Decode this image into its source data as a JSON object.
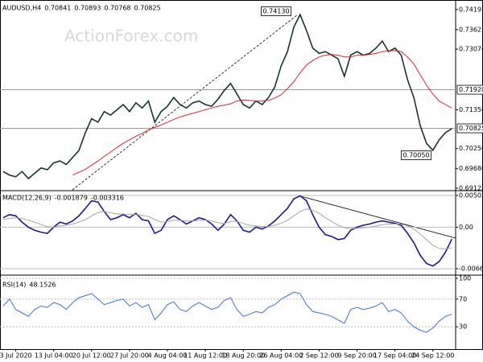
{
  "watermark": "ActionForex.com",
  "chart_data": [
    {
      "type": "line",
      "title": "AUDUSD,H4",
      "ohlc": [
        0.70841,
        0.70893,
        0.70768,
        0.70825
      ],
      "ylim": [
        0.6908,
        0.7442
      ],
      "yticks": [
        0.74195,
        0.73625,
        {
          "value": 0.7307,
          "label": "0.73070"
        },
        {
          "value": 0.7135,
          "label": "0.71350"
        },
        {
          "value": 0.7025,
          "label": "0.70250"
        },
        {
          "value": 0.6968,
          "label": "0.69680"
        },
        0.69125
      ],
      "levels": [
        {
          "value": 0.7192,
          "label": "0.71920"
        },
        0.70825
      ],
      "annotations": [
        {
          "value": 0.7413,
          "label": "0.74130"
        },
        {
          "value": 0.7005,
          "label": "0.70050"
        }
      ],
      "series": [
        {
          "color": "#16352e",
          "values": [
            0.696,
            0.695,
            0.6945,
            0.696,
            0.694,
            0.6955,
            0.697,
            0.6965,
            0.6985,
            0.699,
            0.698,
            0.7,
            0.702,
            0.707,
            0.711,
            0.71,
            0.713,
            0.712,
            0.7135,
            0.715,
            0.713,
            0.7155,
            0.714,
            0.716,
            0.71,
            0.713,
            0.7145,
            0.717,
            0.715,
            0.714,
            0.7155,
            0.716,
            0.715,
            0.7145,
            0.7165,
            0.719,
            0.721,
            0.718,
            0.715,
            0.714,
            0.716,
            0.715,
            0.717,
            0.72,
            0.726,
            0.73,
            0.737,
            0.7405,
            0.736,
            0.731,
            0.7295,
            0.73,
            0.729,
            0.728,
            0.723,
            0.729,
            0.73,
            0.729,
            0.7295,
            0.731,
            0.733,
            0.73,
            0.731,
            0.729,
            0.722,
            0.717,
            0.709,
            0.704,
            0.702,
            0.705,
            0.707,
            0.7082
          ]
        },
        {
          "color": "#e8222b",
          "values": [
            null,
            null,
            null,
            null,
            null,
            null,
            null,
            null,
            null,
            null,
            null,
            0.695,
            0.6958,
            0.6966,
            0.6978,
            0.699,
            0.7003,
            0.7015,
            0.7028,
            0.704,
            0.705,
            0.706,
            0.7068,
            0.7078,
            0.7085,
            0.7092,
            0.71,
            0.7108,
            0.7115,
            0.712,
            0.7125,
            0.713,
            0.7135,
            0.714,
            0.7145,
            0.7148,
            0.7152,
            0.716,
            0.7163,
            0.7162,
            0.716,
            0.716,
            0.7162,
            0.7168,
            0.7178,
            0.7195,
            0.7215,
            0.724,
            0.7262,
            0.7275,
            0.7285,
            0.729,
            0.7292,
            0.729,
            0.7285,
            0.7285,
            0.729,
            0.729,
            0.7292,
            0.7295,
            0.73,
            0.7302,
            0.7303,
            0.73,
            0.7285,
            0.7265,
            0.7235,
            0.7205,
            0.718,
            0.716,
            0.715,
            0.714
          ]
        }
      ]
    },
    {
      "type": "line",
      "title": "MACD(12,26,9)",
      "current": [
        -0.001879,
        -0.003316
      ],
      "ylim": [
        -0.007399,
        0.005694
      ],
      "yticks": [
        0.005052,
        {
          "value": 0,
          "label": "0.00"
        },
        -0.006629
      ],
      "series": [
        {
          "color": "#1a1a8c",
          "values": [
            0.0015,
            0.002,
            0.0018,
            0.0008,
            0.0,
            -0.0005,
            -0.0008,
            -0.001,
            0.0,
            0.0008,
            0.0005,
            0.001,
            0.0018,
            0.003,
            0.0042,
            0.004,
            0.0025,
            0.0012,
            0.0015,
            0.002,
            0.0015,
            0.0022,
            0.0012,
            0.001,
            -0.001,
            -0.0005,
            0.0012,
            0.0018,
            0.0012,
            0.0005,
            0.001,
            0.0015,
            0.0012,
            0.0005,
            -0.0005,
            0.0005,
            0.002,
            0.001,
            -0.0005,
            -0.0008,
            0.0,
            -0.0003,
            0.0002,
            0.001,
            0.002,
            0.003,
            0.0045,
            0.005,
            0.0042,
            0.002,
            0.0,
            -0.0012,
            -0.0015,
            -0.002,
            -0.0018,
            -0.0005,
            0.0,
            0.0003,
            0.0005,
            0.0008,
            0.001,
            0.0008,
            0.0006,
            0.0003,
            -0.001,
            -0.0025,
            -0.0045,
            -0.0058,
            -0.0062,
            -0.0055,
            -0.004,
            -0.0019
          ]
        },
        {
          "color": "#a6a6a6",
          "values": [
            0.0012,
            0.0014,
            0.0015,
            0.0014,
            0.0011,
            0.0008,
            0.0004,
            0.0001,
            0.0,
            0.0002,
            0.0003,
            0.0005,
            0.0008,
            0.0012,
            0.0018,
            0.0023,
            0.0025,
            0.0023,
            0.0021,
            0.0021,
            0.002,
            0.002,
            0.0019,
            0.0017,
            0.0012,
            0.0008,
            0.0009,
            0.0011,
            0.0011,
            0.001,
            0.001,
            0.0011,
            0.0011,
            0.001,
            0.0007,
            0.0006,
            0.0009,
            0.0009,
            0.0006,
            0.0003,
            0.0002,
            0.0001,
            0.0001,
            0.0003,
            0.0006,
            0.0011,
            0.0018,
            0.0025,
            0.0029,
            0.0027,
            0.0022,
            0.0015,
            0.0009,
            0.0003,
            -0.0001,
            -0.0002,
            -0.0002,
            -0.0001,
            0.0,
            0.0002,
            0.0004,
            0.0005,
            0.0005,
            0.0005,
            0.0002,
            -0.0003,
            -0.0011,
            -0.002,
            -0.0029,
            -0.0034,
            -0.0035,
            -0.0033
          ]
        }
      ]
    },
    {
      "type": "line",
      "title": "RSI(14)",
      "current": [
        48.1526
      ],
      "ylim": [
        0,
        100
      ],
      "yticks": [
        100,
        70,
        30
      ],
      "categories": [
        null,
        null,
        "3 Jul 2020",
        null,
        null,
        null,
        null,
        null,
        "13 Jul 04:00",
        null,
        null,
        null,
        null,
        null,
        "20 Jul 12:00",
        null,
        null,
        null,
        null,
        null,
        "27 Jul 20:00",
        null,
        null,
        null,
        null,
        null,
        "4 Aug 04:00",
        null,
        null,
        null,
        null,
        null,
        "11 Aug 12:00",
        null,
        null,
        null,
        null,
        null,
        "18 Aug 20:00",
        null,
        null,
        null,
        null,
        null,
        "26 Aug 04:00",
        null,
        null,
        null,
        null,
        null,
        "2 Sep 12:00",
        null,
        null,
        null,
        null,
        null,
        "9 Sep 20:00",
        null,
        null,
        null,
        null,
        null,
        "17 Sep 04:00",
        null,
        null,
        null,
        null,
        null,
        "24 Sep 12:00",
        null,
        null,
        null
      ],
      "series": [
        {
          "color": "#3a6ee8",
          "values": [
            60,
            70,
            55,
            50,
            45,
            55,
            60,
            58,
            65,
            62,
            55,
            65,
            72,
            75,
            78,
            70,
            62,
            65,
            68,
            70,
            60,
            65,
            58,
            62,
            40,
            50,
            62,
            66,
            55,
            52,
            60,
            65,
            60,
            55,
            58,
            68,
            72,
            55,
            45,
            48,
            52,
            50,
            58,
            62,
            70,
            75,
            80,
            78,
            62,
            52,
            50,
            48,
            45,
            40,
            35,
            55,
            58,
            55,
            57,
            60,
            65,
            52,
            55,
            50,
            38,
            30,
            25,
            22,
            28,
            38,
            45,
            48
          ]
        }
      ]
    }
  ]
}
